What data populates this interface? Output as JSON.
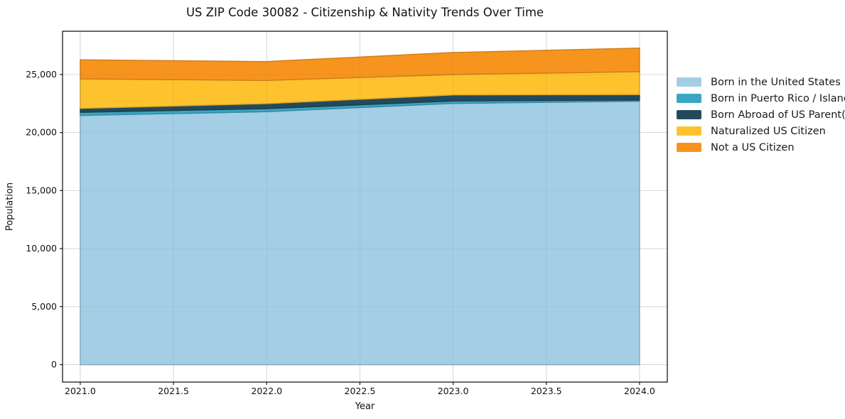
{
  "figure": {
    "title": "US ZIP Code 30082 - Citizenship & Nativity Trends Over Time"
  },
  "chart_data": {
    "type": "area",
    "stacked": true,
    "title": "US ZIP Code 30082 - Citizenship & Nativity Trends Over Time",
    "xlabel": "Year",
    "ylabel": "Population",
    "x": [
      2021,
      2022,
      2023,
      2024
    ],
    "series": [
      {
        "name": "Born in the United States",
        "color": "#a4cee5",
        "values": [
          21470,
          21800,
          22510,
          22700
        ]
      },
      {
        "name": "Born in Puerto Rico / Islands",
        "color": "#3ba6c1",
        "values": [
          270,
          260,
          210,
          100
        ]
      },
      {
        "name": "Born Abroad of US Parent(s)",
        "color": "#224a5c",
        "values": [
          340,
          430,
          520,
          470
        ]
      },
      {
        "name": "Naturalized US Citizen",
        "color": "#fdc22d",
        "values": [
          2550,
          2000,
          1760,
          1980
        ]
      },
      {
        "name": "Not a US Citizen",
        "color": "#f7941e",
        "values": [
          1640,
          1630,
          1900,
          2030
        ]
      }
    ],
    "totals": [
      26270,
      26120,
      26900,
      27280
    ],
    "x_ticks": {
      "values": [
        2021.0,
        2021.5,
        2022.0,
        2022.5,
        2023.0,
        2023.5,
        2024.0
      ],
      "labels": [
        "2021.0",
        "2021.5",
        "2022.0",
        "2022.5",
        "2023.0",
        "2023.5",
        "2024.0"
      ]
    },
    "y_ticks": {
      "values": [
        0,
        5000,
        10000,
        15000,
        20000,
        25000
      ],
      "labels": [
        "0",
        "5,000",
        "10,000",
        "15,000",
        "20,000",
        "25,000"
      ]
    },
    "xlim": [
      2020.905,
      2024.149
    ],
    "ylim": [
      -1500,
      28730
    ],
    "grid": true,
    "grid_color": "#e2e2e2",
    "frame_color": "#1a1a1a",
    "legend_position": "right-outside"
  }
}
